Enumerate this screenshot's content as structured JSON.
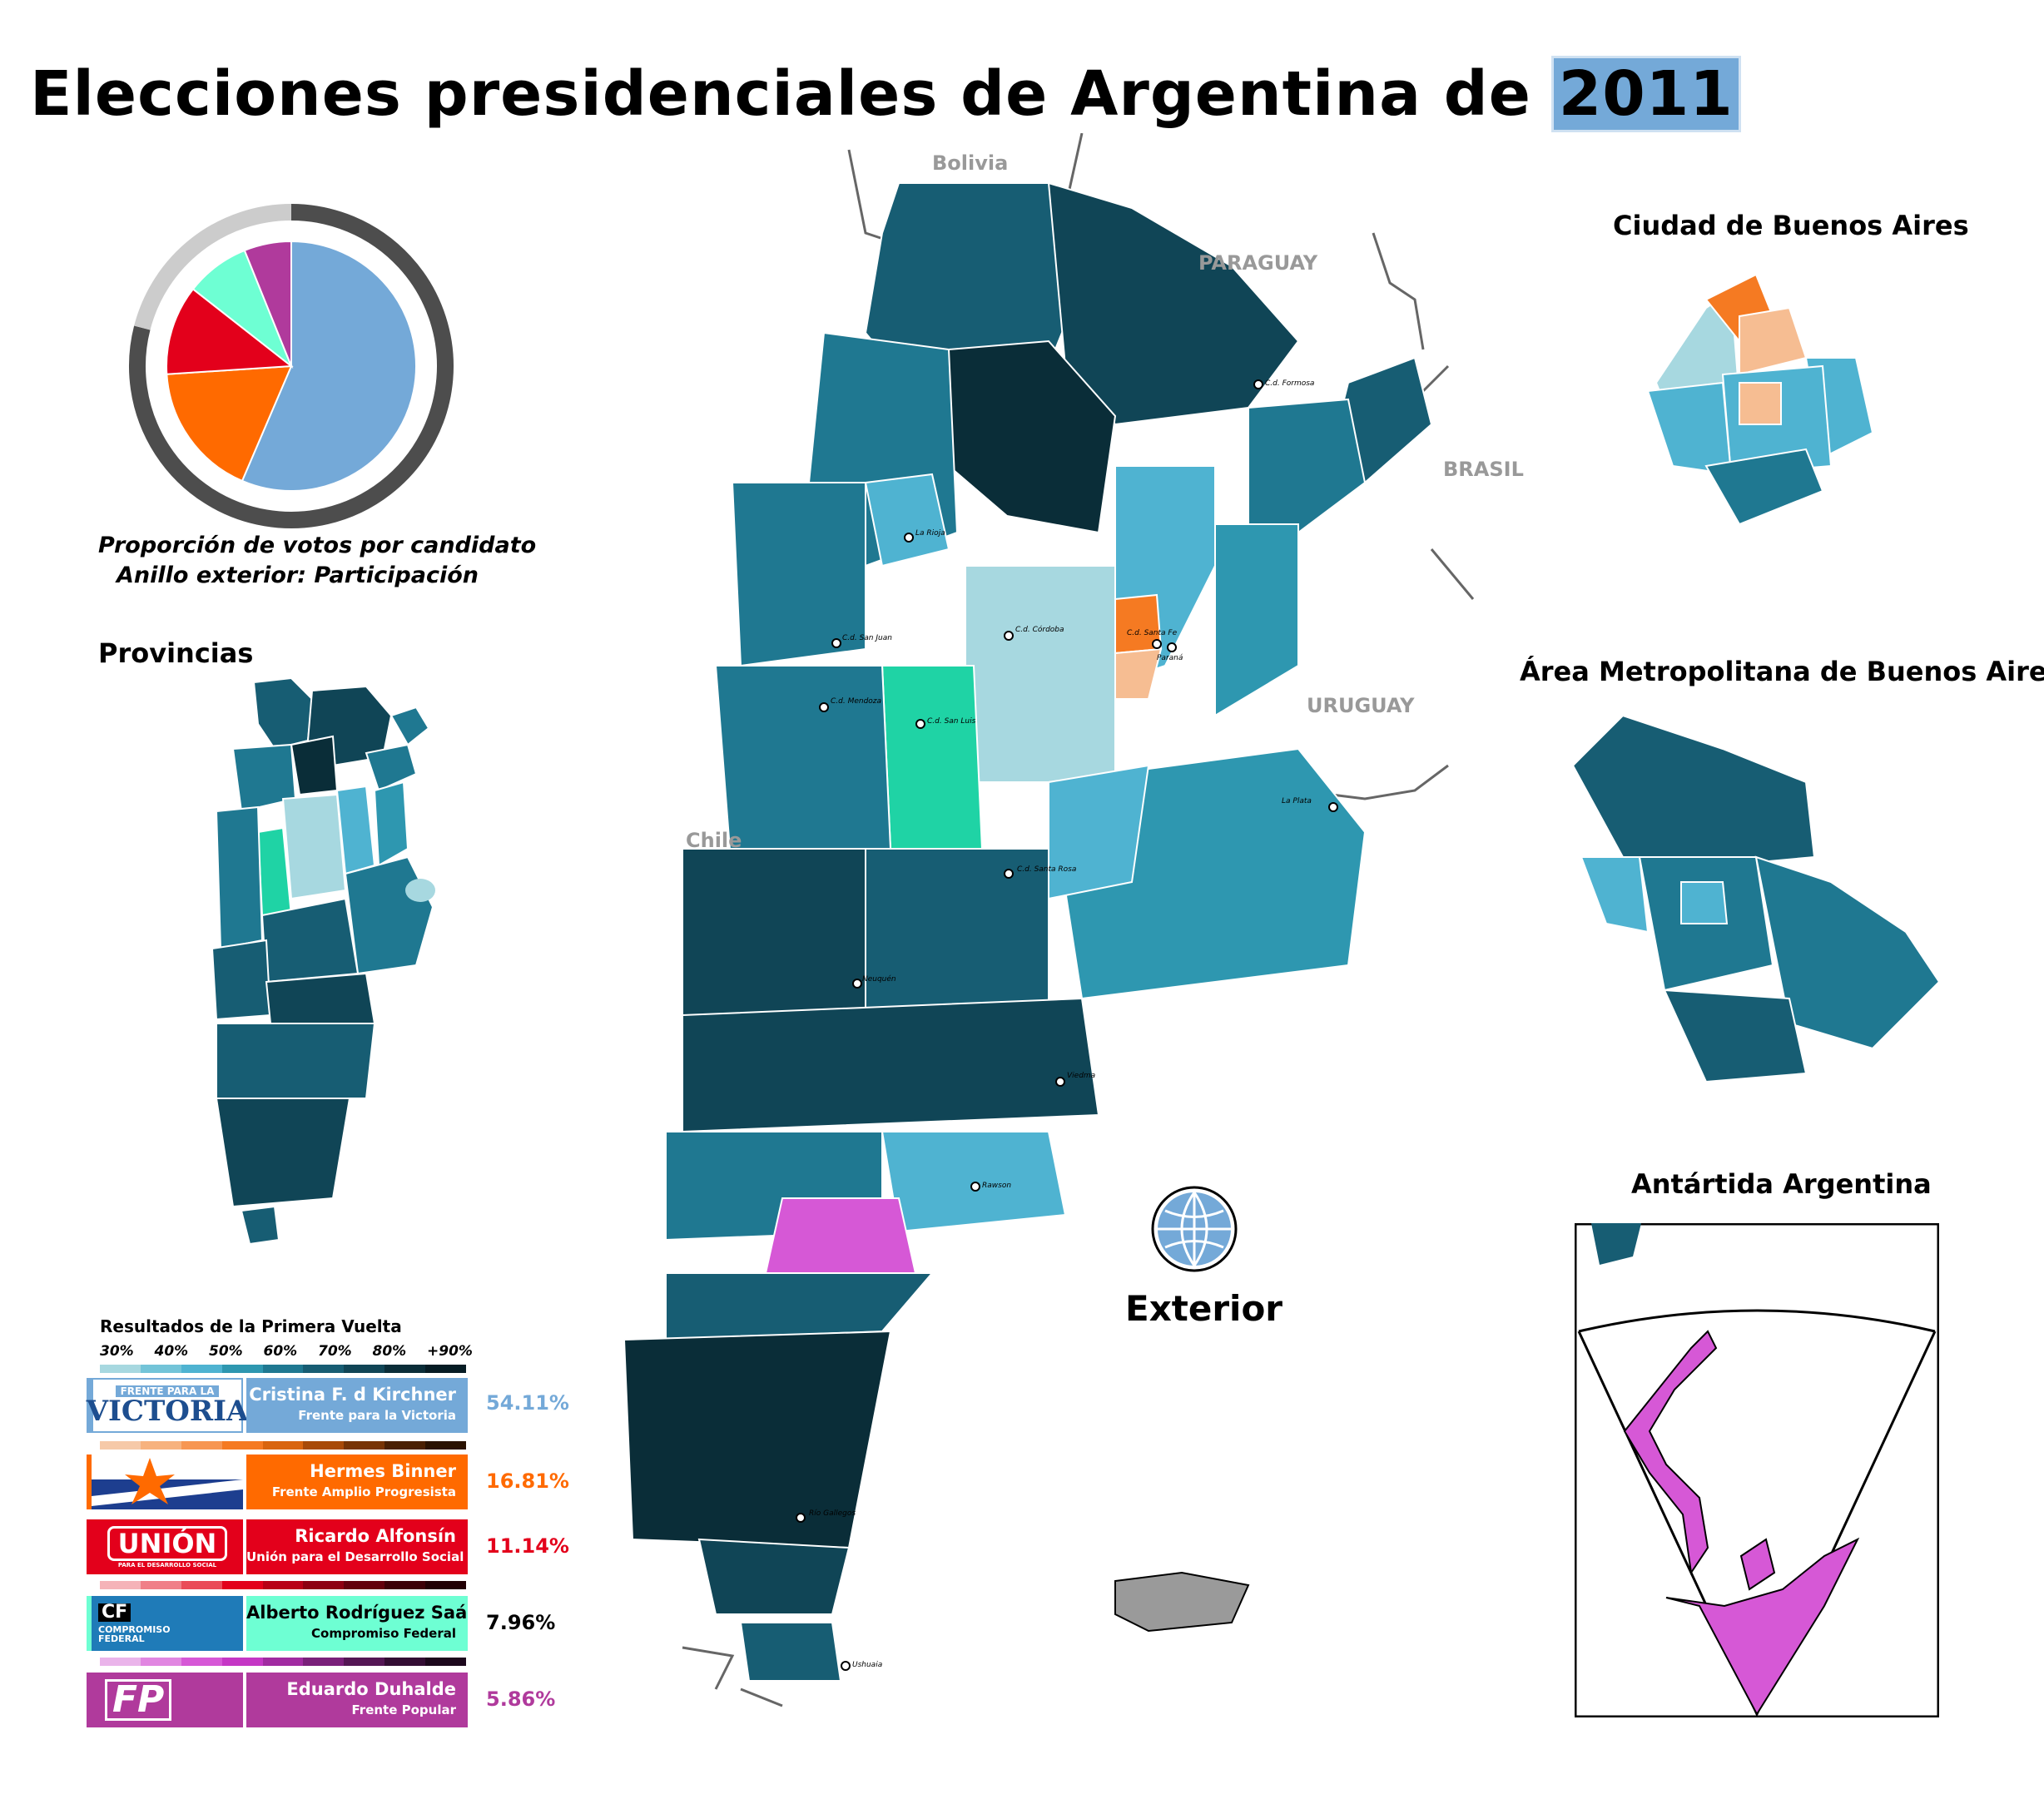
{
  "title": {
    "main": "Elecciones presidenciales de Argentina de",
    "year": "2011"
  },
  "pie": {
    "caption_line1": "Proporción de votos por candidato",
    "caption_line2": "Anillo exterior: Participación",
    "slices": [
      {
        "candidate": "Cristina F. d Kirchner",
        "share": 54.11,
        "color": "#74a9d8"
      },
      {
        "candidate": "Hermes Binner",
        "share": 16.81,
        "color": "#ff6a00"
      },
      {
        "candidate": "Ricardo Alfonsín",
        "share": 11.14,
        "color": "#e3001b"
      },
      {
        "candidate": "Alberto Rodríguez Saá",
        "share": 7.96,
        "color": "#6effd3"
      },
      {
        "candidate": "Eduardo Duhalde",
        "share": 5.86,
        "color": "#b03a9c"
      }
    ],
    "turnout_fraction": 0.79,
    "ring_dark": "#4d4d4d",
    "ring_light": "#cccccc"
  },
  "headings": {
    "provincias": "Provincias",
    "caba": "Ciudad de Buenos Aires",
    "amba": "Área Metropolitana de Buenos Aires",
    "antartida": "Antártida Argentina",
    "exterior": "Exterior"
  },
  "countries": {
    "bolivia": "Bolivia",
    "paraguay": "PARAGUAY",
    "brasil": "BRASIL",
    "uruguay": "URUGUAY",
    "chile": "Chile"
  },
  "cities": {
    "formosa": "C.d. Formosa",
    "larioja": "La Rioja",
    "sanjuan": "C.d. San Juan",
    "mendoza": "C.d. Mendoza",
    "cordoba": "C.d. Córdoba",
    "santafe": "C.d. Santa Fe",
    "parana": "Paraná",
    "sanluis": "C.d. San Luis",
    "laplata": "La Plata",
    "santarosa": "C.d. Santa Rosa",
    "neuquen": "Neuquén",
    "viedma": "Viedma",
    "rawson": "Rawson",
    "riogallegos": "Río Gallegos",
    "ushuaia": "Ushuaia"
  },
  "legend": {
    "title": "Resultados de la Primera Vuelta",
    "ticks": [
      "30%",
      "40%",
      "50%",
      "60%",
      "70%",
      "80%",
      "+90%"
    ],
    "candidates": [
      {
        "name": "Cristina F. d Kirchner",
        "party": "Frente para la Victoria",
        "pct": "54.11%",
        "color": "#74a9d8",
        "logo_top": "FRENTE PARA LA",
        "logo_main": "VICTORIA",
        "scale": [
          "#a7d8e0",
          "#73c4d8",
          "#4fb3d1",
          "#2e97b0",
          "#1f7891",
          "#175d73",
          "#104556",
          "#0a2d38",
          "#061c24"
        ]
      },
      {
        "name": "Hermes Binner",
        "party": "Frente Amplio Progresista",
        "pct": "16.81%",
        "color": "#ff6a00",
        "scale": [
          "#f6c9a8",
          "#f7b27e",
          "#f79652",
          "#f57a22",
          "#d9650f",
          "#a84a08",
          "#773405",
          "#4a2003",
          "#2a1201"
        ]
      },
      {
        "name": "Ricardo Alfonsín",
        "party": "Unión para el Desarrollo Social",
        "pct": "11.14%",
        "color": "#e3001b",
        "logo_main": "UNIÓN",
        "logo_sub": "PARA EL DESARROLLO SOCIAL",
        "scale": [
          "#f5b3b8",
          "#f07f88",
          "#ea4b58",
          "#e3001b",
          "#b80016",
          "#8d0011",
          "#63000c",
          "#3d0007",
          "#220004"
        ]
      },
      {
        "name": "Alberto Rodríguez Saá",
        "party": "Compromiso Federal",
        "pct": "7.96%",
        "color": "#6effd3",
        "logo_main": "CF",
        "logo_sub": "COMPROMISO FEDERAL",
        "scale": [
          "#b4f3e1",
          "#7eecd0",
          "#46e2ba",
          "#1fd3a5",
          "#14ad86",
          "#0e8567",
          "#095e49",
          "#05392c",
          "#021d16"
        ]
      },
      {
        "name": "Eduardo Duhalde",
        "party": "Frente Popular",
        "pct": "5.86%",
        "color": "#b03a9c",
        "logo_main": "FP",
        "scale": [
          "#eab4ea",
          "#e186e1",
          "#d658d6",
          "#c537c5",
          "#a12ba1",
          "#7a207a",
          "#541654",
          "#330d33",
          "#1c071c"
        ]
      }
    ]
  },
  "map_colors": {
    "fpv_light": "#a7d8e0",
    "fpv_mid": "#2e97b0",
    "fpv_dark": "#104556",
    "fpv_darkest": "#061c24",
    "fap": "#f57a22",
    "fap_light": "#f6bd92",
    "cf": "#1fd3a5",
    "fp": "#d658d6",
    "islands": "#9a9a9a"
  }
}
